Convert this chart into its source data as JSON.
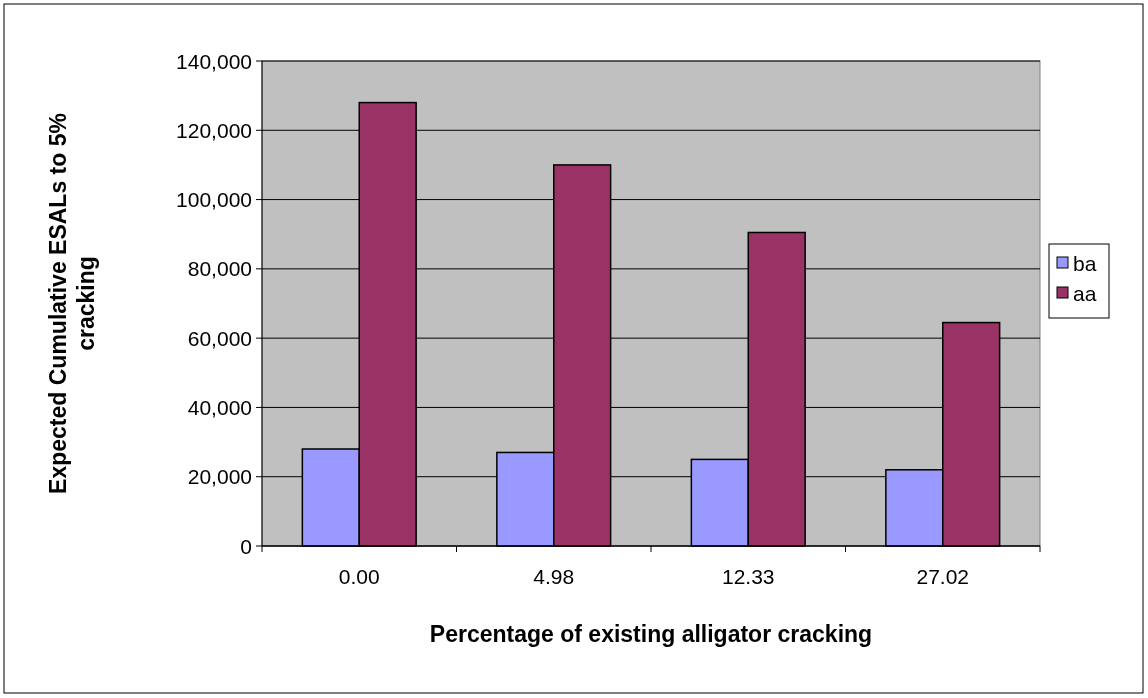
{
  "chart_data": {
    "type": "bar",
    "xlabel": "Percentage of existing alligator cracking",
    "ylabel": "Expected Cumulative ESALs to 5% cracking",
    "categories": [
      "0.00",
      "4.98",
      "12.33",
      "27.02"
    ],
    "series": [
      {
        "name": "ba",
        "color": "#9999ff",
        "values": [
          28000,
          27000,
          25000,
          22000
        ]
      },
      {
        "name": "aa",
        "color": "#993366",
        "values": [
          128000,
          110000,
          90500,
          64500
        ]
      }
    ],
    "ylim": [
      0,
      140000
    ],
    "yticks": [
      {
        "value": 0,
        "label": "0"
      },
      {
        "value": 20000,
        "label": "20,000"
      },
      {
        "value": 40000,
        "label": "40,000"
      },
      {
        "value": 60000,
        "label": "60,000"
      },
      {
        "value": 80000,
        "label": "80,000"
      },
      {
        "value": 100000,
        "label": "100,000"
      },
      {
        "value": 120000,
        "label": "120,000"
      },
      {
        "value": 140000,
        "label": "140,000"
      }
    ],
    "grid": "y",
    "legend": "right"
  }
}
